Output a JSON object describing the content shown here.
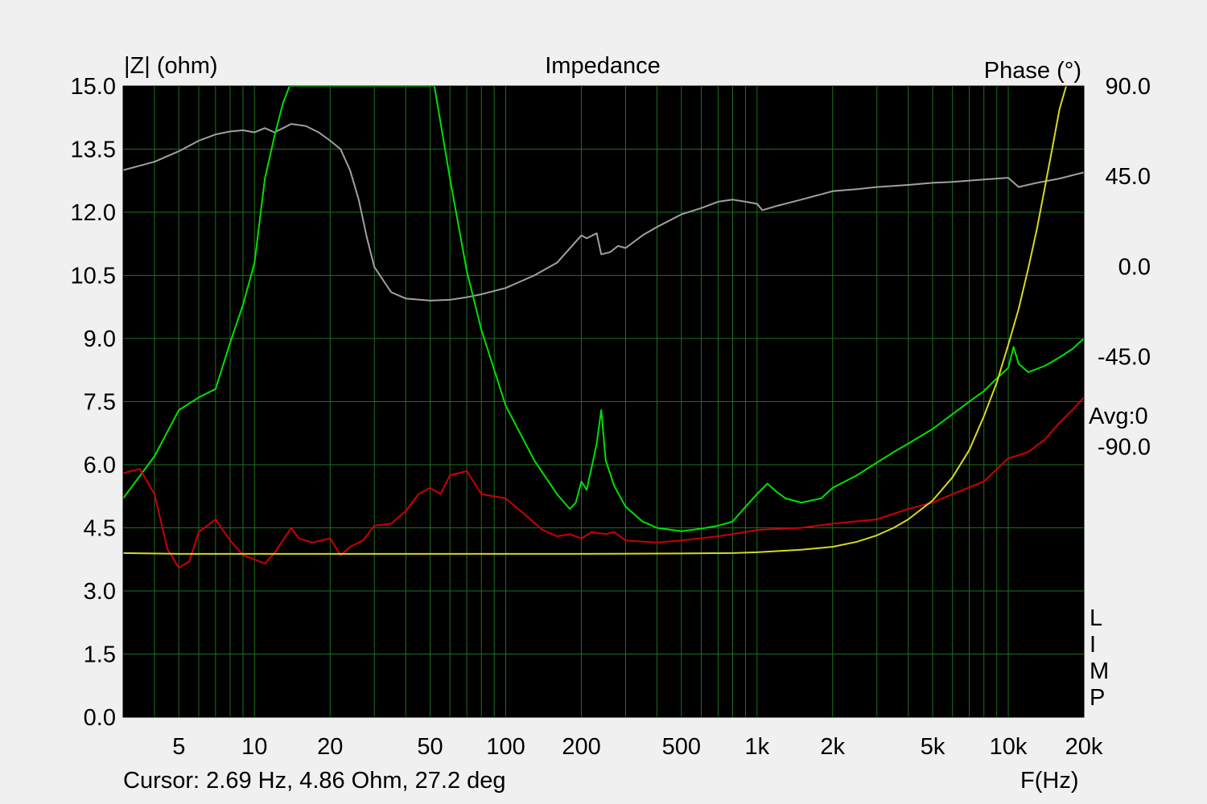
{
  "chart_data": {
    "type": "line",
    "title": "Impedance",
    "ylabel_left": "|Z| (ohm)",
    "ylabel_right": "Phase (°)",
    "xlabel": "F(Hz)",
    "x_scale": "log",
    "xlim": [
      3,
      20000
    ],
    "ylim_left": [
      0,
      15
    ],
    "ylim_right": [
      -225,
      90
    ],
    "y_ticks_left": [
      "15.0",
      "13.5",
      "12.0",
      "10.5",
      "9.0",
      "7.5",
      "6.0",
      "4.5",
      "3.0",
      "1.5",
      "0.0"
    ],
    "y_ticks_right": [
      "90.0",
      "45.0",
      "0.0",
      "-45.0",
      "-90.0"
    ],
    "x_ticks": [
      {
        "v": 5,
        "label": "5"
      },
      {
        "v": 10,
        "label": "10"
      },
      {
        "v": 20,
        "label": "20"
      },
      {
        "v": 50,
        "label": "50"
      },
      {
        "v": 100,
        "label": "100"
      },
      {
        "v": 200,
        "label": "200"
      },
      {
        "v": 500,
        "label": "500"
      },
      {
        "v": 1000,
        "label": "1k"
      },
      {
        "v": 2000,
        "label": "2k"
      },
      {
        "v": 5000,
        "label": "5k"
      },
      {
        "v": 10000,
        "label": "10k"
      },
      {
        "v": 20000,
        "label": "20k"
      }
    ],
    "grid": true,
    "avg_label": "Avg:0",
    "limp_letters": [
      "L",
      "I",
      "M",
      "P"
    ],
    "series": [
      {
        "color": "#a0a0a0",
        "points": [
          [
            3,
            13.0
          ],
          [
            4,
            13.2
          ],
          [
            5,
            13.45
          ],
          [
            6,
            13.7
          ],
          [
            7,
            13.85
          ],
          [
            8,
            13.92
          ],
          [
            9,
            13.95
          ],
          [
            10,
            13.9
          ],
          [
            11,
            14.0
          ],
          [
            12,
            13.9
          ],
          [
            13,
            14.0
          ],
          [
            14,
            14.1
          ],
          [
            16,
            14.05
          ],
          [
            18,
            13.9
          ],
          [
            20,
            13.7
          ],
          [
            22,
            13.5
          ],
          [
            24,
            13.0
          ],
          [
            26,
            12.3
          ],
          [
            28,
            11.4
          ],
          [
            30,
            10.7
          ],
          [
            35,
            10.1
          ],
          [
            40,
            9.95
          ],
          [
            50,
            9.9
          ],
          [
            60,
            9.92
          ],
          [
            70,
            9.98
          ],
          [
            80,
            10.05
          ],
          [
            100,
            10.2
          ],
          [
            130,
            10.5
          ],
          [
            160,
            10.8
          ],
          [
            190,
            11.3
          ],
          [
            200,
            11.45
          ],
          [
            210,
            11.38
          ],
          [
            230,
            11.5
          ],
          [
            240,
            11.0
          ],
          [
            260,
            11.05
          ],
          [
            280,
            11.2
          ],
          [
            300,
            11.15
          ],
          [
            350,
            11.45
          ],
          [
            400,
            11.65
          ],
          [
            500,
            11.95
          ],
          [
            600,
            12.1
          ],
          [
            700,
            12.25
          ],
          [
            800,
            12.3
          ],
          [
            900,
            12.25
          ],
          [
            1000,
            12.2
          ],
          [
            1050,
            12.05
          ],
          [
            1200,
            12.15
          ],
          [
            1500,
            12.3
          ],
          [
            2000,
            12.5
          ],
          [
            2500,
            12.55
          ],
          [
            3000,
            12.6
          ],
          [
            4000,
            12.65
          ],
          [
            5000,
            12.7
          ],
          [
            6000,
            12.72
          ],
          [
            8000,
            12.78
          ],
          [
            10000,
            12.82
          ],
          [
            11000,
            12.6
          ],
          [
            13000,
            12.7
          ],
          [
            16000,
            12.8
          ],
          [
            20000,
            12.95
          ]
        ]
      },
      {
        "color": "#00e000",
        "points": [
          [
            3,
            5.2
          ],
          [
            4,
            6.2
          ],
          [
            5,
            7.3
          ],
          [
            6,
            7.6
          ],
          [
            7,
            7.8
          ],
          [
            8,
            8.9
          ],
          [
            9,
            9.8
          ],
          [
            10,
            10.8
          ],
          [
            11,
            12.8
          ],
          [
            12,
            13.8
          ],
          [
            13,
            14.6
          ],
          [
            13.8,
            15.0
          ],
          [
            52,
            15.0
          ],
          [
            60,
            12.8
          ],
          [
            70,
            10.6
          ],
          [
            80,
            9.2
          ],
          [
            100,
            7.4
          ],
          [
            130,
            6.1
          ],
          [
            160,
            5.3
          ],
          [
            180,
            4.95
          ],
          [
            190,
            5.1
          ],
          [
            200,
            5.6
          ],
          [
            210,
            5.4
          ],
          [
            220,
            5.95
          ],
          [
            230,
            6.5
          ],
          [
            240,
            7.3
          ],
          [
            250,
            6.1
          ],
          [
            270,
            5.5
          ],
          [
            300,
            5.0
          ],
          [
            350,
            4.65
          ],
          [
            400,
            4.5
          ],
          [
            500,
            4.42
          ],
          [
            600,
            4.48
          ],
          [
            700,
            4.55
          ],
          [
            800,
            4.65
          ],
          [
            900,
            5.0
          ],
          [
            1000,
            5.3
          ],
          [
            1100,
            5.55
          ],
          [
            1200,
            5.35
          ],
          [
            1300,
            5.2
          ],
          [
            1500,
            5.1
          ],
          [
            1800,
            5.2
          ],
          [
            2000,
            5.45
          ],
          [
            2500,
            5.75
          ],
          [
            3000,
            6.05
          ],
          [
            3500,
            6.3
          ],
          [
            4000,
            6.5
          ],
          [
            5000,
            6.85
          ],
          [
            6000,
            7.2
          ],
          [
            7000,
            7.5
          ],
          [
            8000,
            7.75
          ],
          [
            9000,
            8.05
          ],
          [
            10000,
            8.3
          ],
          [
            10500,
            8.8
          ],
          [
            11000,
            8.4
          ],
          [
            12000,
            8.2
          ],
          [
            14000,
            8.35
          ],
          [
            16000,
            8.55
          ],
          [
            18000,
            8.75
          ],
          [
            20000,
            9.0
          ]
        ]
      },
      {
        "color": "#cc0000",
        "points": [
          [
            3,
            5.8
          ],
          [
            3.5,
            5.9
          ],
          [
            4,
            5.3
          ],
          [
            4.5,
            4.0
          ],
          [
            5,
            3.55
          ],
          [
            5.5,
            3.7
          ],
          [
            6,
            4.4
          ],
          [
            7,
            4.7
          ],
          [
            8,
            4.2
          ],
          [
            9,
            3.85
          ],
          [
            10,
            3.75
          ],
          [
            11,
            3.65
          ],
          [
            12,
            3.9
          ],
          [
            14,
            4.5
          ],
          [
            15,
            4.25
          ],
          [
            17,
            4.15
          ],
          [
            20,
            4.25
          ],
          [
            22,
            3.85
          ],
          [
            24,
            4.05
          ],
          [
            27,
            4.2
          ],
          [
            30,
            4.55
          ],
          [
            35,
            4.6
          ],
          [
            40,
            4.9
          ],
          [
            45,
            5.3
          ],
          [
            50,
            5.45
          ],
          [
            55,
            5.3
          ],
          [
            60,
            5.75
          ],
          [
            70,
            5.85
          ],
          [
            80,
            5.3
          ],
          [
            100,
            5.2
          ],
          [
            120,
            4.8
          ],
          [
            140,
            4.45
          ],
          [
            160,
            4.3
          ],
          [
            180,
            4.35
          ],
          [
            200,
            4.25
          ],
          [
            220,
            4.4
          ],
          [
            250,
            4.35
          ],
          [
            270,
            4.4
          ],
          [
            300,
            4.2
          ],
          [
            400,
            4.15
          ],
          [
            500,
            4.2
          ],
          [
            700,
            4.3
          ],
          [
            900,
            4.4
          ],
          [
            1000,
            4.45
          ],
          [
            1500,
            4.5
          ],
          [
            2000,
            4.6
          ],
          [
            3000,
            4.7
          ],
          [
            4000,
            4.95
          ],
          [
            5000,
            5.1
          ],
          [
            6000,
            5.3
          ],
          [
            8000,
            5.6
          ],
          [
            10000,
            6.15
          ],
          [
            12000,
            6.3
          ],
          [
            14000,
            6.6
          ],
          [
            16000,
            7.0
          ],
          [
            18000,
            7.3
          ],
          [
            20000,
            7.6
          ]
        ]
      },
      {
        "color": "#d8d820",
        "points": [
          [
            3,
            3.9
          ],
          [
            5,
            3.88
          ],
          [
            10,
            3.88
          ],
          [
            20,
            3.88
          ],
          [
            50,
            3.88
          ],
          [
            100,
            3.88
          ],
          [
            200,
            3.88
          ],
          [
            500,
            3.89
          ],
          [
            800,
            3.9
          ],
          [
            1000,
            3.92
          ],
          [
            1500,
            3.98
          ],
          [
            2000,
            4.05
          ],
          [
            2500,
            4.17
          ],
          [
            3000,
            4.32
          ],
          [
            3500,
            4.5
          ],
          [
            4000,
            4.7
          ],
          [
            5000,
            5.15
          ],
          [
            6000,
            5.7
          ],
          [
            7000,
            6.35
          ],
          [
            8000,
            7.15
          ],
          [
            9000,
            7.95
          ],
          [
            10000,
            8.85
          ],
          [
            11000,
            9.7
          ],
          [
            12000,
            10.65
          ],
          [
            13000,
            11.6
          ],
          [
            14000,
            12.6
          ],
          [
            15000,
            13.55
          ],
          [
            16000,
            14.45
          ],
          [
            17000,
            15.0
          ]
        ]
      }
    ]
  },
  "status": {
    "cursor_readout": "Cursor: 2.69 Hz, 4.86 Ohm, 27.2 deg"
  }
}
